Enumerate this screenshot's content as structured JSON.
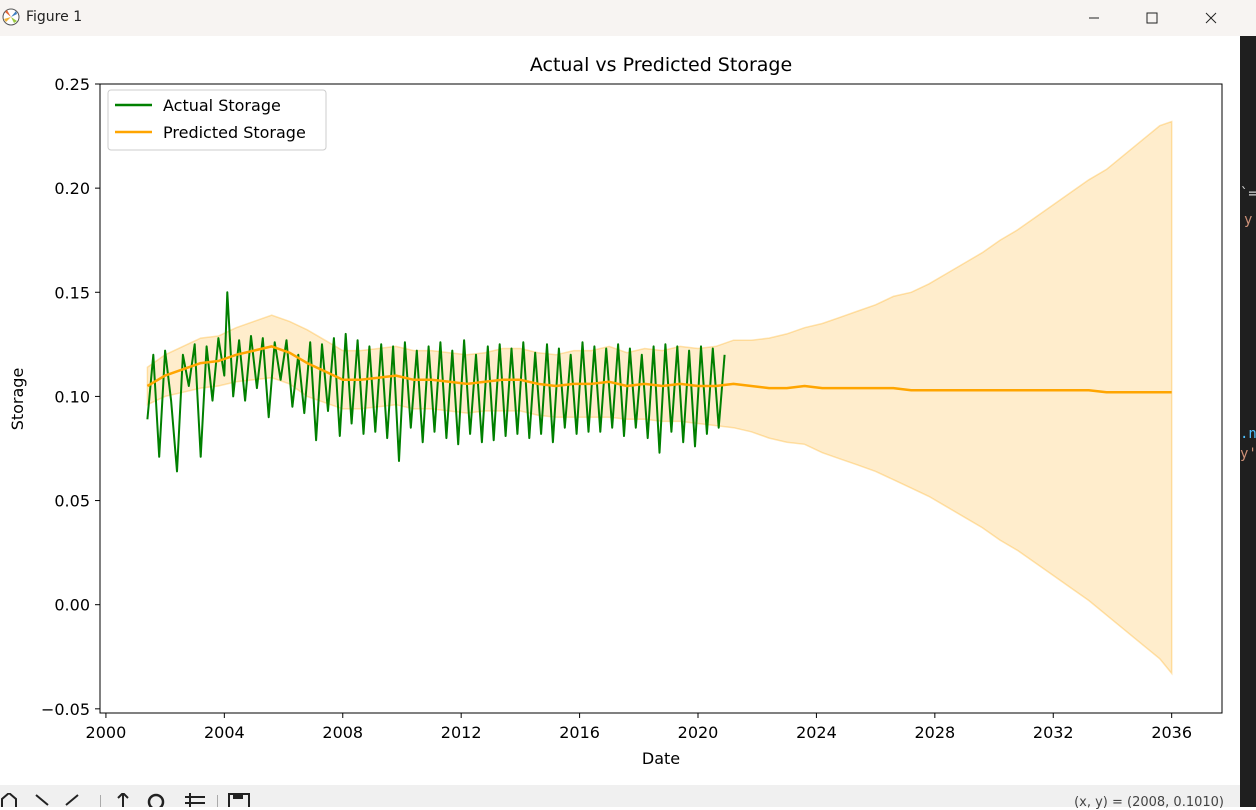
{
  "window": {
    "title": "Figure 1",
    "icons": [
      "matplotlib-icon",
      "minimize-icon",
      "maximize-icon",
      "close-icon"
    ]
  },
  "toolbar": {
    "icons": [
      "home-icon",
      "back-icon",
      "forward-icon",
      "pan-icon",
      "zoom-icon",
      "configure-subplots-icon",
      "save-icon"
    ],
    "coords": "(x, y) = (2008, 0.1010)"
  },
  "chart_data": {
    "type": "line",
    "title": "Actual vs Predicted Storage",
    "xlabel": "Date",
    "ylabel": "Storage",
    "xlim": [
      1999.8,
      2037.7
    ],
    "ylim": [
      -0.052,
      0.25
    ],
    "x_ticks": [
      2000,
      2004,
      2008,
      2012,
      2016,
      2020,
      2024,
      2028,
      2032,
      2036
    ],
    "y_ticks": [
      -0.05,
      0.0,
      0.05,
      0.1,
      0.15,
      0.2,
      0.25
    ],
    "y_tick_labels": [
      "−0.05",
      "0.00",
      "0.05",
      "0.10",
      "0.15",
      "0.20",
      "0.25"
    ],
    "grid": false,
    "legend": "upper-left",
    "series": [
      {
        "name": "Actual Storage",
        "color": "#008000",
        "x": [
          2001.4,
          2001.6,
          2001.8,
          2002.0,
          2002.2,
          2002.4,
          2002.6,
          2002.8,
          2003.0,
          2003.2,
          2003.4,
          2003.6,
          2003.8,
          2004.0,
          2004.1,
          2004.3,
          2004.5,
          2004.7,
          2004.9,
          2005.1,
          2005.3,
          2005.5,
          2005.7,
          2005.9,
          2006.1,
          2006.3,
          2006.5,
          2006.7,
          2006.9,
          2007.1,
          2007.3,
          2007.5,
          2007.7,
          2007.9,
          2008.1,
          2008.3,
          2008.5,
          2008.7,
          2008.9,
          2009.1,
          2009.3,
          2009.5,
          2009.7,
          2009.9,
          2010.1,
          2010.3,
          2010.5,
          2010.7,
          2010.9,
          2011.1,
          2011.3,
          2011.5,
          2011.7,
          2011.9,
          2012.1,
          2012.3,
          2012.5,
          2012.7,
          2012.9,
          2013.1,
          2013.3,
          2013.5,
          2013.7,
          2013.9,
          2014.1,
          2014.3,
          2014.5,
          2014.7,
          2014.9,
          2015.1,
          2015.3,
          2015.5,
          2015.7,
          2015.9,
          2016.1,
          2016.3,
          2016.5,
          2016.7,
          2016.9,
          2017.1,
          2017.3,
          2017.5,
          2017.7,
          2017.9,
          2018.1,
          2018.3,
          2018.5,
          2018.7,
          2018.9,
          2019.1,
          2019.3,
          2019.5,
          2019.7,
          2019.9,
          2020.1,
          2020.3,
          2020.5,
          2020.7,
          2020.9
        ],
        "values": [
          0.089,
          0.12,
          0.071,
          0.122,
          0.098,
          0.064,
          0.12,
          0.105,
          0.125,
          0.071,
          0.124,
          0.098,
          0.128,
          0.11,
          0.15,
          0.1,
          0.127,
          0.098,
          0.129,
          0.104,
          0.128,
          0.09,
          0.126,
          0.108,
          0.127,
          0.095,
          0.12,
          0.092,
          0.126,
          0.079,
          0.125,
          0.093,
          0.128,
          0.081,
          0.13,
          0.087,
          0.127,
          0.082,
          0.124,
          0.083,
          0.125,
          0.08,
          0.124,
          0.069,
          0.126,
          0.085,
          0.122,
          0.078,
          0.124,
          0.083,
          0.126,
          0.08,
          0.122,
          0.077,
          0.127,
          0.082,
          0.12,
          0.078,
          0.124,
          0.079,
          0.125,
          0.081,
          0.123,
          0.082,
          0.126,
          0.08,
          0.121,
          0.082,
          0.125,
          0.078,
          0.123,
          0.085,
          0.12,
          0.082,
          0.126,
          0.083,
          0.124,
          0.083,
          0.123,
          0.085,
          0.125,
          0.081,
          0.123,
          0.085,
          0.12,
          0.08,
          0.124,
          0.073,
          0.125,
          0.083,
          0.124,
          0.078,
          0.122,
          0.076,
          0.124,
          0.082,
          0.123,
          0.085,
          0.12
        ]
      },
      {
        "name": "Predicted Storage",
        "color": "#ffa500",
        "x": [
          2001.4,
          2002.0,
          2002.6,
          2003.2,
          2003.8,
          2004.4,
          2005.0,
          2005.6,
          2006.2,
          2006.8,
          2007.4,
          2008.0,
          2008.6,
          2009.2,
          2009.8,
          2010.4,
          2011.0,
          2011.6,
          2012.2,
          2012.8,
          2013.4,
          2014.0,
          2014.6,
          2015.2,
          2015.8,
          2016.4,
          2017.0,
          2017.6,
          2018.2,
          2018.8,
          2019.4,
          2020.0,
          2020.6,
          2021.2,
          2021.8,
          2022.4,
          2023.0,
          2023.6,
          2024.2,
          2024.8,
          2025.4,
          2026.0,
          2026.6,
          2027.2,
          2027.8,
          2028.4,
          2029.0,
          2029.6,
          2030.2,
          2030.8,
          2031.4,
          2032.0,
          2032.6,
          2033.2,
          2033.8,
          2034.4,
          2035.0,
          2035.6,
          2036.0
        ],
        "values": [
          0.105,
          0.11,
          0.113,
          0.116,
          0.117,
          0.12,
          0.122,
          0.124,
          0.121,
          0.116,
          0.112,
          0.108,
          0.108,
          0.109,
          0.11,
          0.108,
          0.108,
          0.107,
          0.106,
          0.107,
          0.108,
          0.108,
          0.106,
          0.105,
          0.106,
          0.106,
          0.107,
          0.105,
          0.106,
          0.105,
          0.106,
          0.105,
          0.105,
          0.106,
          0.105,
          0.104,
          0.104,
          0.105,
          0.104,
          0.104,
          0.104,
          0.104,
          0.104,
          0.103,
          0.103,
          0.103,
          0.103,
          0.103,
          0.103,
          0.103,
          0.103,
          0.103,
          0.103,
          0.103,
          0.102,
          0.102,
          0.102,
          0.102,
          0.102
        ],
        "lower": [
          0.096,
          0.1,
          0.102,
          0.104,
          0.105,
          0.107,
          0.108,
          0.109,
          0.106,
          0.1,
          0.097,
          0.094,
          0.094,
          0.095,
          0.096,
          0.094,
          0.094,
          0.093,
          0.092,
          0.093,
          0.093,
          0.093,
          0.091,
          0.09,
          0.09,
          0.09,
          0.09,
          0.089,
          0.089,
          0.088,
          0.088,
          0.087,
          0.086,
          0.085,
          0.083,
          0.08,
          0.078,
          0.077,
          0.073,
          0.07,
          0.067,
          0.064,
          0.06,
          0.056,
          0.052,
          0.047,
          0.042,
          0.037,
          0.031,
          0.026,
          0.02,
          0.014,
          0.008,
          0.002,
          -0.005,
          -0.012,
          -0.019,
          -0.026,
          -0.033
        ],
        "upper": [
          0.114,
          0.12,
          0.124,
          0.128,
          0.129,
          0.133,
          0.136,
          0.139,
          0.136,
          0.132,
          0.127,
          0.122,
          0.122,
          0.123,
          0.124,
          0.122,
          0.122,
          0.121,
          0.12,
          0.121,
          0.123,
          0.123,
          0.121,
          0.12,
          0.122,
          0.122,
          0.124,
          0.121,
          0.123,
          0.122,
          0.124,
          0.123,
          0.124,
          0.127,
          0.127,
          0.128,
          0.13,
          0.133,
          0.135,
          0.138,
          0.141,
          0.144,
          0.148,
          0.15,
          0.154,
          0.159,
          0.164,
          0.169,
          0.175,
          0.18,
          0.186,
          0.192,
          0.198,
          0.204,
          0.209,
          0.216,
          0.223,
          0.23,
          0.232
        ]
      }
    ]
  }
}
